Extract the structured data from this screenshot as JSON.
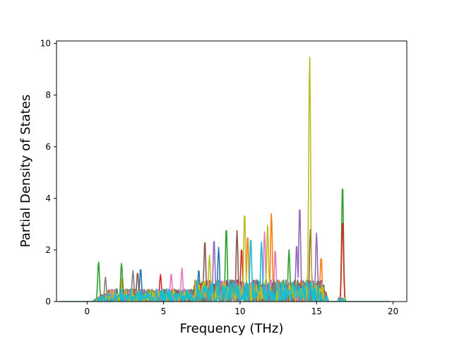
{
  "chart_data": {
    "type": "line",
    "title": "",
    "xlabel": "Frequency (THz)",
    "ylabel": "Partial Density of States",
    "xlim": [
      -2.0,
      20.9
    ],
    "ylim": [
      0,
      10.1
    ],
    "xticks": [
      0,
      5,
      10,
      15,
      20
    ],
    "yticks": [
      0,
      2,
      4,
      6,
      8,
      10
    ],
    "grid": false,
    "legend": "none",
    "colors": [
      "#1f77b4",
      "#ff7f0e",
      "#2ca02c",
      "#d62728",
      "#9467bd",
      "#8c564b",
      "#e377c2",
      "#7f7f7f",
      "#bcbd22",
      "#17becf"
    ],
    "series_count": 10,
    "peaks": [
      {
        "series": 8,
        "x": 14.55,
        "y": 9.6
      },
      {
        "series": 2,
        "x": 16.7,
        "y": 4.6
      },
      {
        "series": 3,
        "x": 16.7,
        "y": 3.2
      },
      {
        "series": 4,
        "x": 13.9,
        "y": 3.75
      },
      {
        "series": 8,
        "x": 10.3,
        "y": 3.5
      },
      {
        "series": 1,
        "x": 12.05,
        "y": 3.45
      },
      {
        "series": 8,
        "x": 11.8,
        "y": 2.95
      },
      {
        "series": 2,
        "x": 9.1,
        "y": 2.9
      },
      {
        "series": 5,
        "x": 14.6,
        "y": 2.8
      },
      {
        "series": 5,
        "x": 9.8,
        "y": 2.75
      },
      {
        "series": 4,
        "x": 15.0,
        "y": 2.65
      },
      {
        "series": 6,
        "x": 11.6,
        "y": 2.7
      },
      {
        "series": 1,
        "x": 10.5,
        "y": 2.6
      },
      {
        "series": 9,
        "x": 10.7,
        "y": 2.5
      },
      {
        "series": 4,
        "x": 8.3,
        "y": 2.45
      },
      {
        "series": 5,
        "x": 7.7,
        "y": 2.4
      },
      {
        "series": 9,
        "x": 11.4,
        "y": 2.3
      },
      {
        "series": 4,
        "x": 13.7,
        "y": 2.25
      },
      {
        "series": 6,
        "x": 12.3,
        "y": 2.05
      },
      {
        "series": 2,
        "x": 13.2,
        "y": 2.0
      },
      {
        "series": 0,
        "x": 8.6,
        "y": 2.1
      },
      {
        "series": 3,
        "x": 10.1,
        "y": 2.1
      },
      {
        "series": 1,
        "x": 15.3,
        "y": 1.75
      },
      {
        "series": 8,
        "x": 8.0,
        "y": 1.8
      },
      {
        "series": 2,
        "x": 0.75,
        "y": 1.55
      },
      {
        "series": 2,
        "x": 2.25,
        "y": 1.5
      },
      {
        "series": 0,
        "x": 3.5,
        "y": 1.3
      },
      {
        "series": 6,
        "x": 6.2,
        "y": 1.3
      },
      {
        "series": 0,
        "x": 7.3,
        "y": 1.25
      },
      {
        "series": 7,
        "x": 3.0,
        "y": 1.2
      },
      {
        "series": 5,
        "x": 3.3,
        "y": 1.15
      },
      {
        "series": 6,
        "x": 5.5,
        "y": 1.1
      },
      {
        "series": 3,
        "x": 4.8,
        "y": 1.05
      },
      {
        "series": 7,
        "x": 1.2,
        "y": 0.95
      },
      {
        "series": 1,
        "x": 2.3,
        "y": 0.95
      }
    ]
  }
}
